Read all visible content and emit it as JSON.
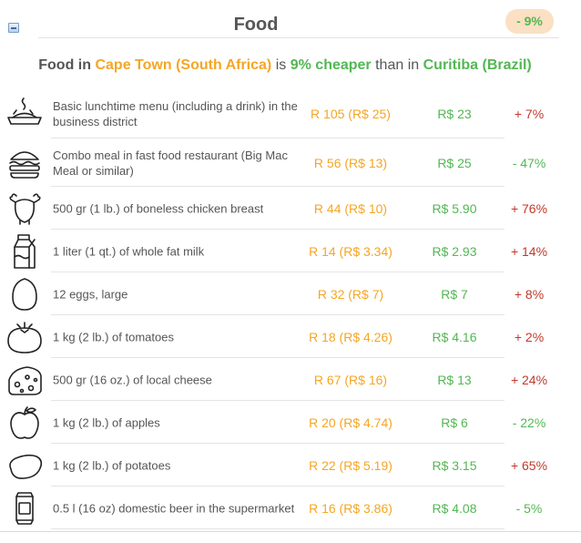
{
  "section": {
    "title": "Food",
    "difference_badge": "- 9%"
  },
  "summary": {
    "prefix": "Food in",
    "city_a": "Cape Town (South Africa)",
    "verb": "is",
    "difference": "9% cheaper",
    "than": "than in",
    "city_b": "Curitiba (Brazil)"
  },
  "colors": {
    "city_a": "#f5a623",
    "city_b": "#53b753",
    "increase": "#c0392b",
    "decrease": "#53b753",
    "badge_bg": "#fbe0c4"
  },
  "items": [
    {
      "icon": "lunch-tray-icon",
      "name": "Basic lunchtime menu (including a drink) in the business district",
      "price_a": "R 105 (R$ 25)",
      "price_b": "R$ 23",
      "change": "+ 7%",
      "direction": "up"
    },
    {
      "icon": "burger-icon",
      "name": "Combo meal in fast food restaurant (Big Mac Meal or similar)",
      "price_a": "R 56 (R$ 13)",
      "price_b": "R$ 25",
      "change": "- 47%",
      "direction": "down"
    },
    {
      "icon": "chicken-icon",
      "name": "500 gr (1 lb.) of boneless chicken breast",
      "price_a": "R 44 (R$ 10)",
      "price_b": "R$ 5.90",
      "change": "+ 76%",
      "direction": "up"
    },
    {
      "icon": "milk-carton-icon",
      "name": "1 liter (1 qt.) of whole fat milk",
      "price_a": "R 14 (R$ 3.34)",
      "price_b": "R$ 2.93",
      "change": "+ 14%",
      "direction": "up"
    },
    {
      "icon": "egg-icon",
      "name": "12 eggs, large",
      "price_a": "R 32 (R$ 7)",
      "price_b": "R$ 7",
      "change": "+ 8%",
      "direction": "up"
    },
    {
      "icon": "tomato-icon",
      "name": "1 kg (2 lb.) of tomatoes",
      "price_a": "R 18 (R$ 4.26)",
      "price_b": "R$ 4.16",
      "change": "+ 2%",
      "direction": "up"
    },
    {
      "icon": "cheese-icon",
      "name": "500 gr (16 oz.) of local cheese",
      "price_a": "R 67 (R$ 16)",
      "price_b": "R$ 13",
      "change": "+ 24%",
      "direction": "up"
    },
    {
      "icon": "apple-icon",
      "name": "1 kg (2 lb.) of apples",
      "price_a": "R 20 (R$ 4.74)",
      "price_b": "R$ 6",
      "change": "- 22%",
      "direction": "down"
    },
    {
      "icon": "potato-icon",
      "name": "1 kg (2 lb.) of potatoes",
      "price_a": "R 22 (R$ 5.19)",
      "price_b": "R$ 3.15",
      "change": "+ 65%",
      "direction": "up"
    },
    {
      "icon": "beer-can-icon",
      "name": "0.5 l (16 oz) domestic beer in the supermarket",
      "price_a": "R 16 (R$ 3.86)",
      "price_b": "R$ 4.08",
      "change": "- 5%",
      "direction": "down"
    }
  ]
}
